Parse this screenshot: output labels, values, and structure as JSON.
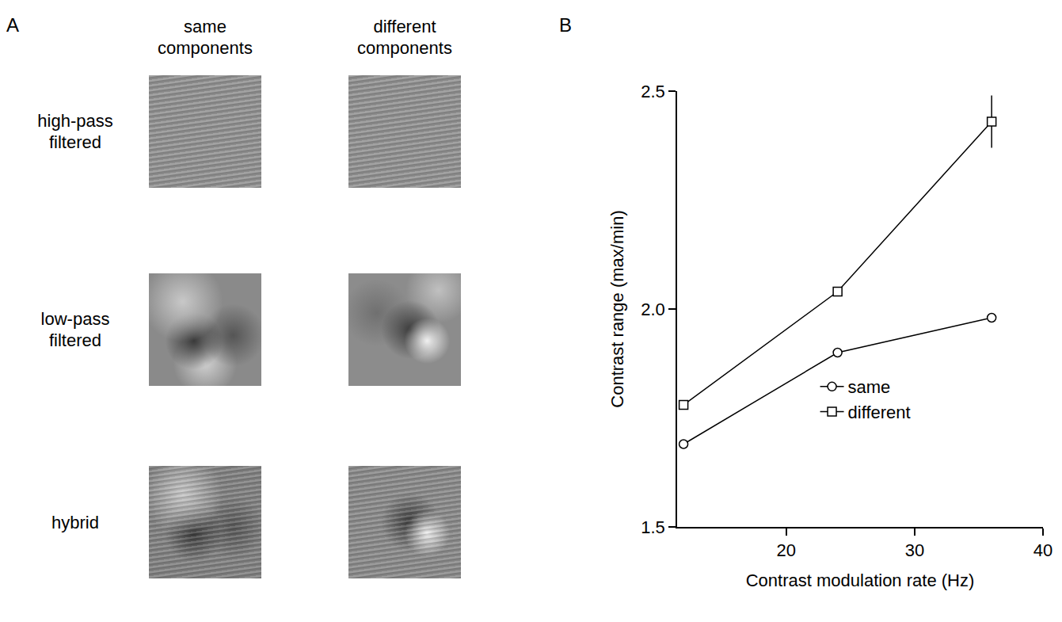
{
  "panel_a": {
    "label": "A",
    "columns": [
      "same components",
      "different components"
    ],
    "rows": [
      "high-pass filtered",
      "low-pass filtered",
      "hybrid"
    ]
  },
  "chart_data": {
    "panel_label": "B",
    "type": "line",
    "x_label": "Contrast modulation rate (Hz)",
    "y_label": "Contrast range (max/min)",
    "x": [
      12,
      24,
      36
    ],
    "series": [
      {
        "name": "same",
        "color": "#000000",
        "marker": "circle",
        "values": [
          1.69,
          1.9,
          1.98
        ]
      },
      {
        "name": "different",
        "color": "#000000",
        "marker": "square",
        "values": [
          1.78,
          2.04,
          2.43
        ],
        "errors": [
          0,
          0,
          0.06
        ]
      }
    ],
    "xlim": [
      11.5,
      40
    ],
    "xticks": [
      20,
      30,
      40
    ],
    "ylim": [
      1.5,
      2.5
    ],
    "yticks": [
      1.5,
      {
        "value": 2,
        "label": "2.0"
      },
      2.5
    ],
    "grid": false,
    "legend": "right"
  }
}
